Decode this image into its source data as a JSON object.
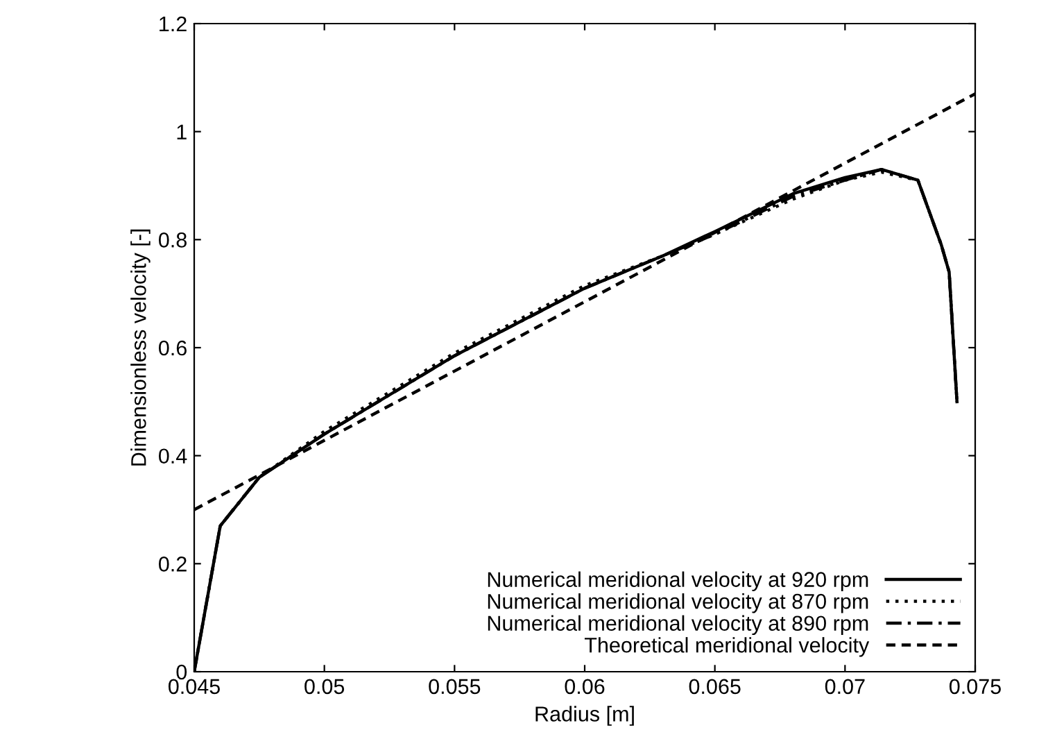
{
  "chart_data": {
    "type": "line",
    "xlabel": "Radius [m]",
    "ylabel": "Dimensionless velocity [-]",
    "xlim": [
      0.045,
      0.075
    ],
    "xticks": [
      0.045,
      0.05,
      0.055,
      0.06,
      0.065,
      0.07,
      0.075
    ],
    "ylim": [
      0,
      1.2
    ],
    "yticks": [
      0,
      0.2,
      0.4,
      0.6,
      0.8,
      1,
      1.2
    ],
    "grid": false,
    "legend": "bottom right",
    "series": [
      {
        "name": "Numerical meridional velocity at 920 rpm",
        "color": "#000000",
        "line_style": "solid",
        "x": [
          0.045,
          0.046,
          0.0475,
          0.05,
          0.055,
          0.06,
          0.063,
          0.065,
          0.068,
          0.07,
          0.0714,
          0.0728,
          0.0737,
          0.074,
          0.0743
        ],
        "values": [
          0.0,
          0.27,
          0.36,
          0.44,
          0.585,
          0.71,
          0.77,
          0.815,
          0.885,
          0.915,
          0.93,
          0.91,
          0.79,
          0.74,
          0.5
        ]
      },
      {
        "name": "Numerical meridional velocity at 870 rpm",
        "color": "#000000",
        "line_style": "dotted",
        "x": [
          0.045,
          0.046,
          0.0475,
          0.05,
          0.055,
          0.06,
          0.063,
          0.065,
          0.068,
          0.07,
          0.0714,
          0.0728,
          0.0737,
          0.074,
          0.0743
        ],
        "values": [
          0.0,
          0.27,
          0.36,
          0.445,
          0.59,
          0.715,
          0.77,
          0.81,
          0.875,
          0.91,
          0.925,
          0.91,
          0.79,
          0.74,
          0.5
        ]
      },
      {
        "name": "Numerical meridional velocity at 890 rpm",
        "color": "#000000",
        "line_style": "dashdot",
        "x": [
          0.045,
          0.046,
          0.0475,
          0.05,
          0.055,
          0.06,
          0.063,
          0.065,
          0.068,
          0.07,
          0.0714,
          0.0728,
          0.0737,
          0.074,
          0.0743
        ],
        "values": [
          0.0,
          0.27,
          0.36,
          0.44,
          0.585,
          0.71,
          0.77,
          0.81,
          0.88,
          0.91,
          0.93,
          0.91,
          0.79,
          0.74,
          0.5
        ]
      },
      {
        "name": "Theoretical meridional velocity",
        "color": "#000000",
        "line_style": "dashed",
        "x": [
          0.045,
          0.075
        ],
        "values": [
          0.3,
          1.07
        ]
      }
    ]
  }
}
